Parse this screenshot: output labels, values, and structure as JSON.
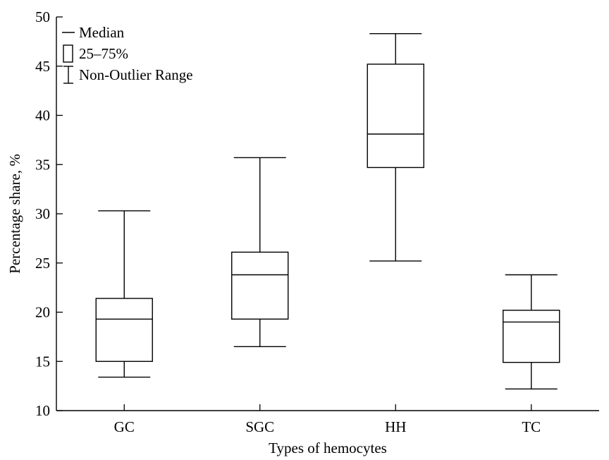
{
  "chart_data": {
    "type": "box",
    "xlabel": "Types of hemocytes",
    "ylabel": "Percentage share, %",
    "ylim": [
      10,
      50
    ],
    "yticks": [
      10,
      15,
      20,
      25,
      30,
      35,
      40,
      45,
      50
    ],
    "categories": [
      "GC",
      "SGC",
      "HH",
      "TC"
    ],
    "boxes": [
      {
        "category": "GC",
        "min": 13.4,
        "q1": 15.0,
        "median": 19.3,
        "q3": 21.4,
        "max": 30.3
      },
      {
        "category": "SGC",
        "min": 16.5,
        "q1": 19.3,
        "median": 23.8,
        "q3": 26.1,
        "max": 35.7
      },
      {
        "category": "HH",
        "min": 25.2,
        "q1": 34.7,
        "median": 38.1,
        "q3": 45.2,
        "max": 48.3
      },
      {
        "category": "TC",
        "min": 12.2,
        "q1": 14.9,
        "median": 19.0,
        "q3": 20.2,
        "max": 23.8
      }
    ],
    "legend": {
      "position": "top-left",
      "entries": [
        {
          "symbol": "line",
          "label": "Median"
        },
        {
          "symbol": "box",
          "label": "25–75%"
        },
        {
          "symbol": "whisker",
          "label": "Non-Outlier Range"
        }
      ]
    },
    "grid": false
  }
}
